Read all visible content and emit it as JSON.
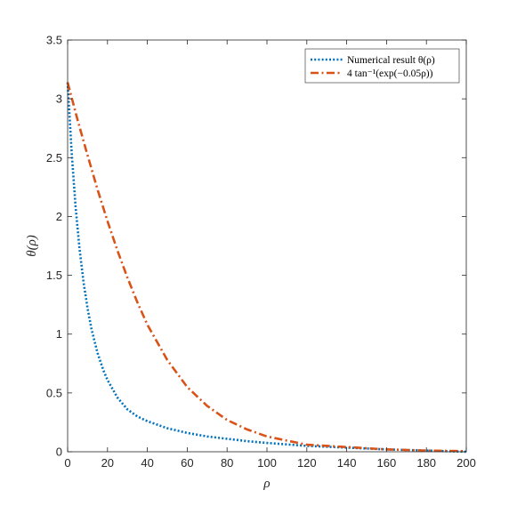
{
  "chart_data": {
    "type": "line",
    "xlabel": "ρ",
    "ylabel": "θ(ρ)",
    "xlim": [
      0,
      200
    ],
    "ylim": [
      0,
      3.5
    ],
    "xticks": [
      "0",
      "20",
      "40",
      "60",
      "80",
      "100",
      "120",
      "140",
      "160",
      "180",
      "200"
    ],
    "yticks": [
      "0",
      "0.5",
      "1",
      "1.5",
      "2",
      "2.5",
      "3",
      "3.5"
    ],
    "grid": false,
    "legend_position": "top-right",
    "series": [
      {
        "name": "Numerical result θ(ρ)",
        "color": "#0072BD",
        "line_style": "dotted",
        "x": [
          0,
          2,
          4,
          6,
          8,
          10,
          12,
          15,
          18,
          20,
          25,
          30,
          35,
          40,
          50,
          60,
          70,
          80,
          90,
          100,
          120,
          140,
          160,
          180,
          200
        ],
        "y": [
          3.14,
          2.55,
          2.08,
          1.72,
          1.44,
          1.22,
          1.04,
          0.84,
          0.69,
          0.61,
          0.46,
          0.36,
          0.3,
          0.26,
          0.2,
          0.16,
          0.13,
          0.11,
          0.09,
          0.075,
          0.05,
          0.035,
          0.02,
          0.01,
          0.0
        ]
      },
      {
        "name": "4 tan⁻¹(exp(−0.05ρ))",
        "color": "#D95319",
        "line_style": "dash-dot",
        "x": [
          0,
          5,
          10,
          15,
          20,
          25,
          30,
          35,
          40,
          50,
          60,
          70,
          80,
          90,
          100,
          120,
          140,
          160,
          180,
          200
        ],
        "y": [
          3.14,
          2.82,
          2.52,
          2.23,
          1.96,
          1.71,
          1.48,
          1.27,
          1.08,
          0.78,
          0.55,
          0.39,
          0.27,
          0.19,
          0.13,
          0.06,
          0.04,
          0.02,
          0.01,
          0.005
        ]
      }
    ]
  }
}
